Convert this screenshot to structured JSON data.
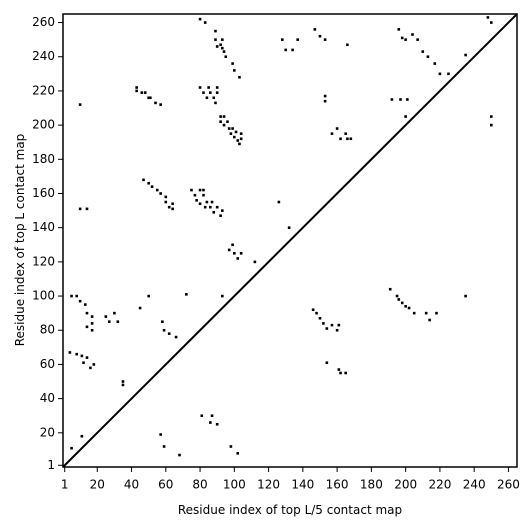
{
  "chart_data": {
    "type": "scatter",
    "x_label": "Residue index of top L/5 contact map",
    "y_label": "Residue index of top L contact map",
    "color": "#000000",
    "diagonal": true,
    "xlim": [
      0,
      265
    ],
    "ylim": [
      0,
      265
    ],
    "xticks": [
      1,
      20,
      40,
      60,
      80,
      100,
      120,
      140,
      160,
      180,
      200,
      220,
      240,
      260
    ],
    "yticks": [
      1,
      20,
      40,
      60,
      80,
      100,
      120,
      140,
      160,
      180,
      200,
      220,
      240,
      260
    ],
    "x": [
      235,
      191,
      195,
      196,
      198,
      200,
      202,
      205,
      212,
      214,
      218,
      146,
      148,
      150,
      152,
      154,
      157,
      160,
      161,
      154,
      161,
      162,
      165,
      192,
      197,
      200,
      201,
      235,
      250,
      250,
      157,
      160,
      162,
      165,
      166,
      168,
      210,
      213,
      217,
      220,
      225,
      196,
      198,
      200,
      204,
      207,
      248,
      250,
      166,
      153,
      147,
      150,
      153,
      153,
      137,
      130,
      134,
      128,
      126,
      132,
      112,
      103,
      100,
      99,
      95,
      93,
      5,
      8,
      10,
      13,
      14,
      17,
      17,
      17,
      14,
      25,
      27,
      30,
      32,
      45,
      50,
      72,
      93,
      58,
      59,
      62,
      66,
      4,
      8,
      11,
      14,
      12,
      16,
      18,
      35,
      35,
      5,
      11,
      57,
      59,
      68,
      81,
      87,
      90,
      86,
      98,
      102,
      99,
      97,
      100,
      102,
      104,
      10,
      14,
      10,
      43,
      43,
      46,
      48,
      50,
      51,
      54,
      57,
      80,
      82,
      84,
      85,
      86,
      88,
      89,
      90,
      90,
      92,
      92,
      94,
      94,
      96,
      97,
      98,
      99,
      100,
      101,
      102,
      103,
      104,
      104,
      80,
      83,
      89,
      89,
      90,
      92,
      94,
      93,
      47,
      50,
      52,
      55,
      57,
      60,
      60,
      62,
      64,
      64,
      75,
      77,
      78,
      80,
      82,
      83,
      84,
      86,
      87,
      88,
      90,
      92,
      93,
      80,
      82
    ],
    "y": [
      100,
      104,
      100,
      98,
      96,
      94,
      93,
      90,
      90,
      86,
      90,
      92,
      90,
      87,
      84,
      81,
      83,
      80,
      83,
      61,
      57,
      55,
      55,
      215,
      215,
      205,
      215,
      241,
      205,
      200,
      195,
      198,
      192,
      195,
      192,
      192,
      243,
      240,
      236,
      230,
      230,
      256,
      251,
      250,
      253,
      250,
      263,
      260,
      247,
      250,
      256,
      252,
      217,
      214,
      250,
      244,
      244,
      250,
      155,
      140,
      120,
      228,
      232,
      236,
      240,
      245,
      100,
      100,
      97,
      95,
      90,
      88,
      84,
      80,
      82,
      88,
      85,
      90,
      85,
      93,
      100,
      101,
      100,
      85,
      80,
      78,
      76,
      67,
      66,
      65,
      64,
      61,
      58,
      60,
      48,
      50,
      11,
      18,
      19,
      12,
      7,
      30,
      30,
      25,
      26,
      12,
      8,
      130,
      127,
      125,
      122,
      125,
      151,
      151,
      212,
      222,
      220,
      219,
      219,
      216,
      216,
      213,
      212,
      222,
      219,
      216,
      222,
      219,
      216,
      213,
      222,
      219,
      205,
      202,
      205,
      200,
      202,
      198,
      195,
      198,
      193,
      196,
      191,
      189,
      195,
      192,
      262,
      260,
      255,
      250,
      246,
      247,
      243,
      250,
      168,
      166,
      164,
      162,
      160,
      158,
      155,
      152,
      151,
      154,
      162,
      159,
      156,
      154,
      159,
      152,
      155,
      152,
      155,
      149,
      152,
      147,
      150,
      162,
      162
    ]
  }
}
